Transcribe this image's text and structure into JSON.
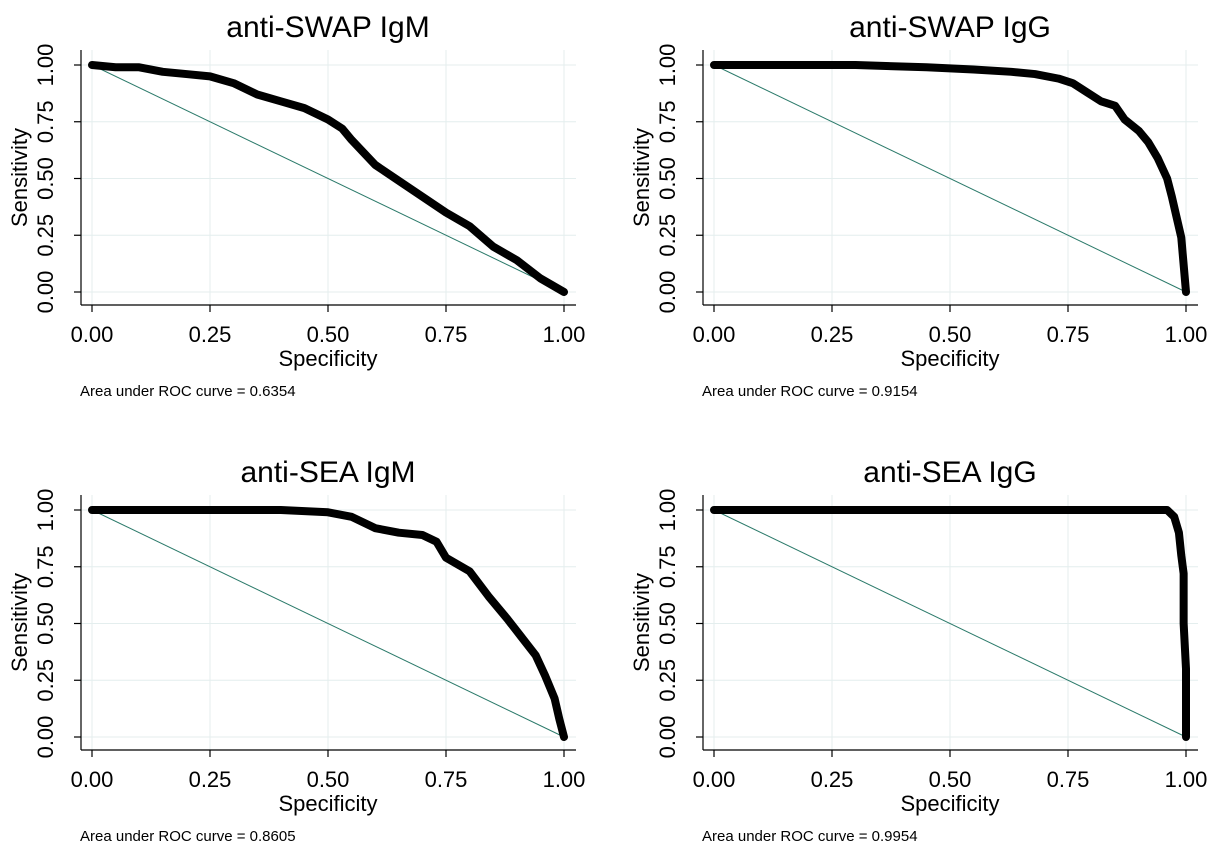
{
  "chart_data": [
    {
      "type": "line",
      "title": "anti-SWAP IgM",
      "xlabel": "Specificity",
      "ylabel": "Sensitivity",
      "xlim": [
        0,
        1
      ],
      "ylim": [
        0,
        1
      ],
      "xticks": [
        "0.00",
        "0.25",
        "0.50",
        "0.75",
        "1.00"
      ],
      "yticks": [
        "0.00",
        "0.25",
        "0.50",
        "0.75",
        "1.00"
      ],
      "note": "Area under ROC curve = 0.6354",
      "grid": true,
      "series": [
        {
          "x": [
            0.0,
            0.05,
            0.1,
            0.15,
            0.2,
            0.25,
            0.3,
            0.35,
            0.4,
            0.45,
            0.5,
            0.53,
            0.55,
            0.6,
            0.65,
            0.7,
            0.75,
            0.8,
            0.85,
            0.9,
            0.95,
            1.0
          ],
          "y": [
            1.0,
            0.99,
            0.99,
            0.97,
            0.96,
            0.95,
            0.92,
            0.87,
            0.84,
            0.81,
            0.76,
            0.72,
            0.67,
            0.56,
            0.49,
            0.42,
            0.35,
            0.29,
            0.2,
            0.14,
            0.06,
            0.0
          ]
        },
        {
          "x": [
            0,
            1
          ],
          "y": [
            1,
            0
          ]
        }
      ]
    },
    {
      "type": "line",
      "title": "anti-SWAP IgG",
      "xlabel": "Specificity",
      "ylabel": "Sensitivity",
      "xlim": [
        0,
        1
      ],
      "ylim": [
        0,
        1
      ],
      "xticks": [
        "0.00",
        "0.25",
        "0.50",
        "0.75",
        "1.00"
      ],
      "yticks": [
        "0.00",
        "0.25",
        "0.50",
        "0.75",
        "1.00"
      ],
      "note": "Area under ROC curve = 0.9154",
      "grid": true,
      "series": [
        {
          "x": [
            0.0,
            0.3,
            0.45,
            0.55,
            0.63,
            0.68,
            0.73,
            0.76,
            0.79,
            0.82,
            0.85,
            0.87,
            0.9,
            0.92,
            0.94,
            0.96,
            0.97,
            0.98,
            0.99,
            1.0
          ],
          "y": [
            1.0,
            1.0,
            0.99,
            0.98,
            0.97,
            0.96,
            0.94,
            0.92,
            0.88,
            0.84,
            0.82,
            0.76,
            0.71,
            0.66,
            0.59,
            0.5,
            0.42,
            0.33,
            0.24,
            0.0
          ]
        },
        {
          "x": [
            0,
            1
          ],
          "y": [
            1,
            0
          ]
        }
      ]
    },
    {
      "type": "line",
      "title": "anti-SEA IgM",
      "xlabel": "Specificity",
      "ylabel": "Sensitivity",
      "xlim": [
        0,
        1
      ],
      "ylim": [
        0,
        1
      ],
      "xticks": [
        "0.00",
        "0.25",
        "0.50",
        "0.75",
        "1.00"
      ],
      "yticks": [
        "0.00",
        "0.25",
        "0.50",
        "0.75",
        "1.00"
      ],
      "note": "Area under ROC curve = 0.8605",
      "grid": true,
      "series": [
        {
          "x": [
            0.0,
            0.2,
            0.4,
            0.5,
            0.55,
            0.6,
            0.65,
            0.7,
            0.73,
            0.75,
            0.8,
            0.84,
            0.88,
            0.91,
            0.94,
            0.96,
            0.98,
            0.99,
            1.0
          ],
          "y": [
            1.0,
            1.0,
            1.0,
            0.99,
            0.97,
            0.92,
            0.9,
            0.89,
            0.86,
            0.79,
            0.73,
            0.62,
            0.52,
            0.44,
            0.36,
            0.27,
            0.17,
            0.08,
            0.0
          ]
        },
        {
          "x": [
            0,
            1
          ],
          "y": [
            1,
            0
          ]
        }
      ]
    },
    {
      "type": "line",
      "title": "anti-SEA IgG",
      "xlabel": "Specificity",
      "ylabel": "Sensitivity",
      "xlim": [
        0,
        1
      ],
      "ylim": [
        0,
        1
      ],
      "xticks": [
        "0.00",
        "0.25",
        "0.50",
        "0.75",
        "1.00"
      ],
      "yticks": [
        "0.00",
        "0.25",
        "0.50",
        "0.75",
        "1.00"
      ],
      "note": "Area under ROC curve = 0.9954",
      "grid": true,
      "series": [
        {
          "x": [
            0.0,
            0.5,
            0.96,
            0.975,
            0.985,
            0.99,
            0.995,
            0.995,
            1.0,
            1.0
          ],
          "y": [
            1.0,
            1.0,
            1.0,
            0.97,
            0.9,
            0.8,
            0.72,
            0.5,
            0.3,
            0.0
          ]
        },
        {
          "x": [
            0,
            1
          ],
          "y": [
            1,
            0
          ]
        }
      ]
    }
  ],
  "colors": {
    "roc_curve": "#000000",
    "reference_line": "#2b7a6a",
    "grid": "#e4eeee",
    "axis": "#000000"
  }
}
